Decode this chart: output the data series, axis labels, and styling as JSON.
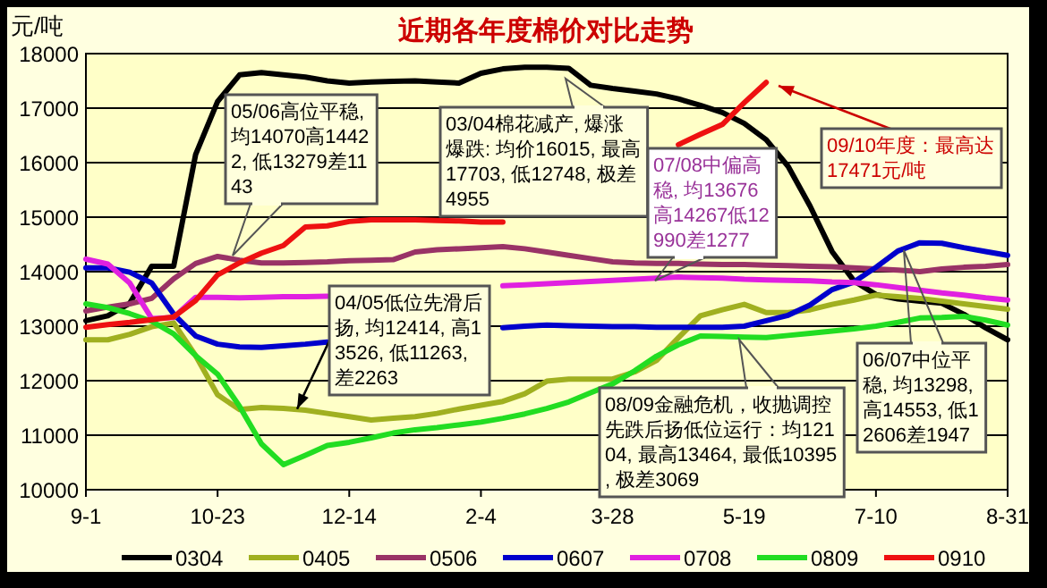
{
  "chart_data": {
    "type": "line",
    "title": "近期各年度棉价对比走势",
    "ylabel": "元/吨",
    "categories": [
      "9-1",
      null,
      null,
      null,
      null,
      null,
      "10-23",
      null,
      null,
      null,
      null,
      null,
      "12-14",
      null,
      null,
      null,
      null,
      null,
      "2-4",
      null,
      null,
      null,
      null,
      null,
      "3-28",
      null,
      null,
      null,
      null,
      null,
      "5-19",
      null,
      null,
      null,
      null,
      null,
      "7-10",
      null,
      null,
      null,
      null,
      null,
      "8-31"
    ],
    "ylim": [
      10000,
      18000
    ],
    "yticks": [
      10000,
      11000,
      12000,
      13000,
      14000,
      15000,
      16000,
      17000,
      18000
    ],
    "grid": "y",
    "legend": "bottom",
    "line_style": "solid",
    "marker": "none",
    "series": [
      {
        "name": "0304",
        "color": "#000000",
        "values": [
          13100,
          13190,
          13420,
          14100,
          14100,
          16150,
          17120,
          17610,
          17650,
          17610,
          17570,
          17500,
          17460,
          17480,
          17490,
          17500,
          17480,
          17460,
          17640,
          17720,
          17750,
          17750,
          17730,
          17420,
          17360,
          17310,
          17260,
          17170,
          17050,
          16920,
          16720,
          16420,
          15930,
          15200,
          14370,
          13830,
          13580,
          13500,
          13460,
          13420,
          13220,
          12970,
          12750
        ]
      },
      {
        "name": "0405",
        "color": "#a0b020",
        "values": [
          12750,
          12750,
          12850,
          12990,
          13060,
          12460,
          11740,
          11470,
          11510,
          11490,
          11460,
          11400,
          11340,
          11280,
          11310,
          11340,
          11400,
          11480,
          11550,
          11620,
          11760,
          11990,
          12030,
          12030,
          12030,
          12160,
          12370,
          12790,
          13190,
          13300,
          13400,
          13250,
          13250,
          13300,
          13400,
          13480,
          13570,
          13540,
          13510,
          13460,
          13410,
          13360,
          13310
        ]
      },
      {
        "name": "0506",
        "color": "#993366",
        "values": [
          13280,
          13350,
          13410,
          13510,
          13870,
          14150,
          14280,
          14210,
          14160,
          14160,
          14170,
          14180,
          14200,
          14210,
          14220,
          14360,
          14400,
          14420,
          14440,
          14460,
          14420,
          14360,
          14300,
          14240,
          14180,
          14160,
          14150,
          14150,
          14140,
          14130,
          14130,
          14120,
          14110,
          14100,
          14090,
          14070,
          14050,
          14030,
          14000,
          14050,
          14080,
          14100,
          14130
        ]
      },
      {
        "name": "0607",
        "color": "#0000cc",
        "values": [
          14070,
          14070,
          13990,
          13790,
          13220,
          12820,
          12670,
          12620,
          12610,
          12640,
          12670,
          12710,
          null,
          null,
          null,
          null,
          null,
          null,
          null,
          12970,
          13000,
          13020,
          13010,
          13000,
          12990,
          12990,
          12980,
          12980,
          12980,
          12980,
          13000,
          13100,
          13200,
          13390,
          13670,
          13810,
          14080,
          14380,
          14530,
          14520,
          14440,
          14370,
          14300
        ]
      },
      {
        "name": "0708",
        "color": "#e020e0",
        "values": [
          14230,
          14140,
          13790,
          13140,
          13160,
          13530,
          13530,
          13520,
          13530,
          13540,
          13540,
          13550,
          null,
          null,
          null,
          null,
          null,
          null,
          null,
          13740,
          13760,
          13780,
          13800,
          13820,
          13840,
          13860,
          13880,
          13900,
          13890,
          13880,
          13860,
          13850,
          13840,
          13830,
          13810,
          13800,
          13760,
          13710,
          13660,
          13610,
          13570,
          13520,
          13480
        ]
      },
      {
        "name": "0809",
        "color": "#22dd22",
        "values": [
          13410,
          13340,
          13230,
          13090,
          12860,
          12460,
          12120,
          11530,
          10840,
          10460,
          10630,
          10810,
          10870,
          10950,
          11040,
          11100,
          11140,
          11190,
          11240,
          11310,
          11390,
          11490,
          11610,
          11780,
          11940,
          12180,
          12450,
          12660,
          12820,
          12810,
          12800,
          12790,
          12830,
          12870,
          12910,
          12950,
          13000,
          13070,
          13150,
          13160,
          13180,
          13110,
          13020
        ]
      },
      {
        "name": "0910",
        "color": "#ee1111",
        "values": [
          12980,
          13030,
          13070,
          13120,
          13170,
          13470,
          13940,
          14160,
          14340,
          14480,
          14820,
          14840,
          14920,
          14950,
          14950,
          14950,
          14940,
          14930,
          14910,
          14910,
          null,
          null,
          null,
          null,
          null,
          null,
          null,
          16330,
          16520,
          16700,
          17100,
          17471,
          null,
          null,
          null,
          null,
          null,
          null,
          null,
          null,
          null,
          null,
          null
        ]
      }
    ],
    "annotations": [
      "05/06高位平稳, 均14070高14422, 低13279差1143",
      "03/04棉花减产, 爆涨爆跌: 均价16015, 最高17703, 低12748, 极差4955",
      "07/08中偏高稳, 均13676高14267低12990差1277",
      "09/10年度：最高达17471元/吨",
      {
        "text": "04/05低位先滑后扬, 均12414, 高13526, 低11263, 差2263",
        "y": 11480
      },
      "08/09金融危机，收抛调控先跌后扬低位运行：均12104, 最高13464, 最低10395, 极差3069",
      "06/07中位平稳, 均13298, 高14553, 低12606差1947"
    ]
  }
}
